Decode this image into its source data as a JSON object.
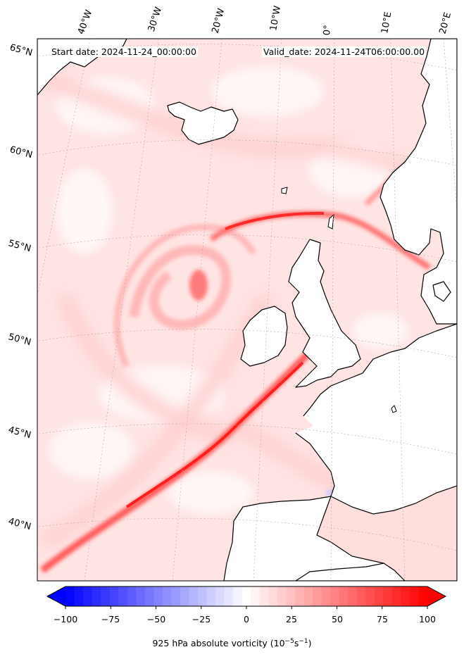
{
  "header": {
    "start_date": "Start date: 2024-11-24_00:00:00",
    "valid_date": "Valid_date: 2024-11-24T06:00:00.00"
  },
  "longitude_labels": [
    "40°W",
    "30°W",
    "20°W",
    "10°W",
    "0°",
    "10°E",
    "20°E"
  ],
  "latitude_labels": [
    "65°N",
    "60°N",
    "55°N",
    "50°N",
    "45°N",
    "40°N"
  ],
  "colorbar": {
    "ticks": [
      "−100",
      "−75",
      "−50",
      "−25",
      "0",
      "25",
      "50",
      "75",
      "100"
    ],
    "title_main": "925 hPa absolute vorticity (10",
    "title_exp1": "−5",
    "title_mid": "s",
    "title_exp2": "−1",
    "title_end": ")",
    "min_color": "#0000ff",
    "zero_color": "#ffffff",
    "max_color": "#ff0000",
    "levels": 41
  },
  "colors": {
    "land": "#ffffff",
    "ocean_background": "#ffe3e3",
    "coastline": "#000000",
    "gridline": "#aaaaaa"
  }
}
